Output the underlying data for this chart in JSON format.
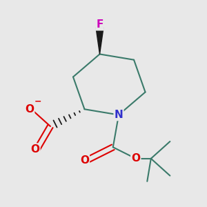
{
  "background_color": "#e8e8e8",
  "atom_colors": {
    "C": "#1a1a1a",
    "N": "#3030cc",
    "O": "#dd0000",
    "F": "#cc00bb"
  },
  "bond_color": "#3a7a6a",
  "bond_width": 1.5,
  "wedge_color": "#1a1a1a",
  "figsize": [
    3.0,
    3.0
  ],
  "dpi": 100
}
